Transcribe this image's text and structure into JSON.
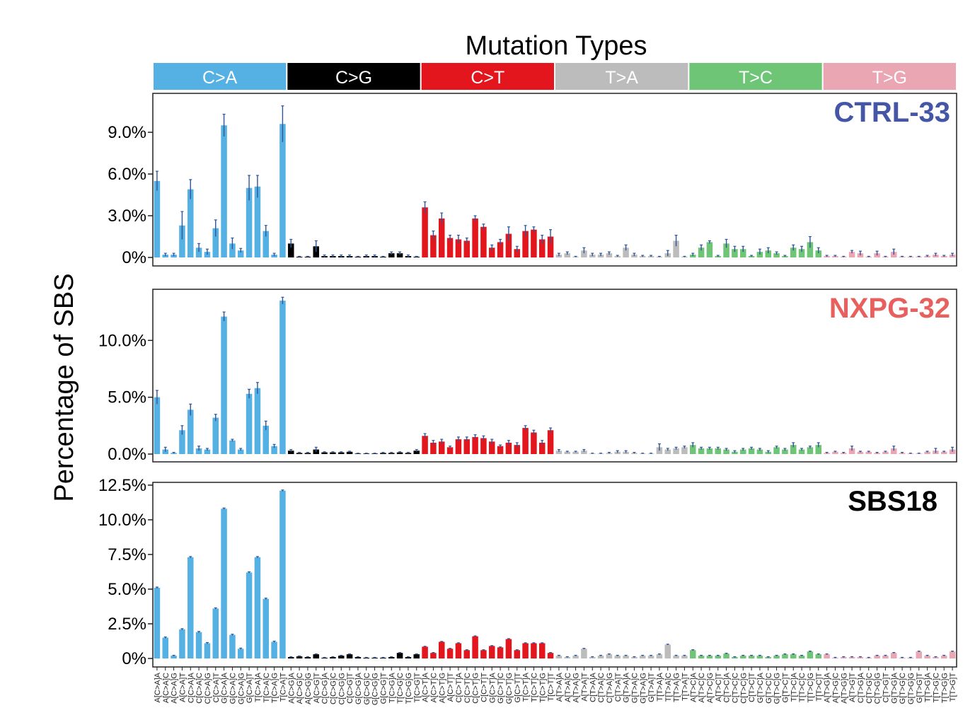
{
  "chart_data": {
    "type": "bar",
    "title": "Mutation Types",
    "ylabel": "Percentage of SBS",
    "groups": [
      {
        "name": "C>A",
        "color": "#55b1e4"
      },
      {
        "name": "C>G",
        "color": "#000000"
      },
      {
        "name": "C>T",
        "color": "#e3161e"
      },
      {
        "name": "T>A",
        "color": "#bcbcbc"
      },
      {
        "name": "T>C",
        "color": "#6ec576"
      },
      {
        "name": "T>G",
        "color": "#eba6b4"
      }
    ],
    "categories": [
      "A[C>A]A",
      "A[C>A]C",
      "A[C>A]G",
      "A[C>A]T",
      "C[C>A]A",
      "C[C>A]C",
      "C[C>A]G",
      "C[C>A]T",
      "G[C>A]A",
      "G[C>A]C",
      "G[C>A]G",
      "G[C>A]T",
      "T[C>A]A",
      "T[C>A]C",
      "T[C>A]G",
      "T[C>A]T",
      "A[C>G]A",
      "A[C>G]C",
      "A[C>G]G",
      "A[C>G]T",
      "C[C>G]A",
      "C[C>G]C",
      "C[C>G]G",
      "C[C>G]T",
      "G[C>G]A",
      "G[C>G]C",
      "G[C>G]G",
      "G[C>G]T",
      "T[C>G]A",
      "T[C>G]C",
      "T[C>G]G",
      "T[C>G]T",
      "A[C>T]A",
      "A[C>T]C",
      "A[C>T]G",
      "A[C>T]T",
      "C[C>T]A",
      "C[C>T]C",
      "C[C>T]G",
      "C[C>T]T",
      "G[C>T]A",
      "G[C>T]C",
      "G[C>T]G",
      "G[C>T]T",
      "T[C>T]A",
      "T[C>T]C",
      "T[C>T]G",
      "T[C>T]T",
      "A[T>A]A",
      "A[T>A]C",
      "A[T>A]G",
      "A[T>A]T",
      "C[T>A]A",
      "C[T>A]C",
      "C[T>A]G",
      "C[T>A]T",
      "G[T>A]A",
      "G[T>A]C",
      "G[T>A]G",
      "G[T>A]T",
      "T[T>A]A",
      "T[T>A]C",
      "T[T>A]G",
      "T[T>A]T",
      "A[T>C]A",
      "A[T>C]C",
      "A[T>C]G",
      "A[T>C]T",
      "C[T>C]A",
      "C[T>C]C",
      "C[T>C]G",
      "C[T>C]T",
      "G[T>C]A",
      "G[T>C]C",
      "G[T>C]G",
      "G[T>C]T",
      "T[T>C]A",
      "T[T>C]C",
      "T[T>C]G",
      "T[T>C]T",
      "A[T>G]A",
      "A[T>G]C",
      "A[T>G]G",
      "A[T>G]T",
      "C[T>G]A",
      "C[T>G]C",
      "C[T>G]G",
      "C[T>G]T",
      "G[T>G]A",
      "G[T>G]C",
      "G[T>G]G",
      "G[T>G]T",
      "T[T>G]A",
      "T[T>G]C",
      "T[T>G]G",
      "T[T>G]T"
    ],
    "panels": [
      {
        "name": "CTRL-33",
        "name_color": "#4456a5",
        "ylim": [
          0,
          11.8
        ],
        "ticks": [
          {
            "v": 0,
            "label": "0%"
          },
          {
            "v": 3,
            "label": "3.0%"
          },
          {
            "v": 6,
            "label": "6.0%"
          },
          {
            "v": 9,
            "label": "9.0%"
          }
        ],
        "values": [
          5.5,
          0.2,
          0.2,
          2.3,
          4.9,
          0.7,
          0.4,
          2.1,
          9.5,
          1.0,
          0.5,
          5.0,
          5.1,
          1.9,
          0.2,
          9.6,
          1.0,
          0.05,
          0.05,
          0.8,
          0.1,
          0.1,
          0.1,
          0.1,
          0.05,
          0.1,
          0.1,
          0.05,
          0.3,
          0.3,
          0.1,
          0.05,
          3.6,
          1.6,
          2.8,
          1.4,
          1.3,
          1.2,
          2.8,
          2.2,
          0.7,
          1.1,
          1.7,
          0.6,
          1.9,
          2.0,
          1.3,
          1.5,
          0.2,
          0.3,
          0.05,
          0.5,
          0.2,
          0.2,
          0.3,
          0.1,
          0.7,
          0.2,
          0.1,
          0.1,
          0.05,
          0.3,
          1.2,
          0.05,
          0.2,
          0.7,
          1.1,
          0.1,
          1.0,
          0.6,
          0.6,
          0.1,
          0.4,
          0.5,
          0.3,
          0.1,
          0.7,
          0.6,
          1.1,
          0.5,
          0.1,
          0.1,
          0.05,
          0.4,
          0.3,
          0.05,
          0.3,
          0.05,
          0.4,
          0.05,
          0.05,
          0.05,
          0.1,
          0.2,
          0.1,
          0.2
        ],
        "errors": [
          0.7,
          0.1,
          0.1,
          1.0,
          0.7,
          0.3,
          0.2,
          0.6,
          0.8,
          0.4,
          0.15,
          0.9,
          0.8,
          0.4,
          0.1,
          1.3,
          0.3,
          0.03,
          0.03,
          0.4,
          0.08,
          0.08,
          0.08,
          0.08,
          0.03,
          0.08,
          0.08,
          0.03,
          0.1,
          0.1,
          0.08,
          0.03,
          0.4,
          0.3,
          0.4,
          0.2,
          0.3,
          0.2,
          0.2,
          0.2,
          0.2,
          0.2,
          0.5,
          0.2,
          0.4,
          0.2,
          0.3,
          0.5,
          0.1,
          0.1,
          0.03,
          0.2,
          0.1,
          0.1,
          0.1,
          0.05,
          0.2,
          0.1,
          0.05,
          0.05,
          0.03,
          0.2,
          0.4,
          0.03,
          0.1,
          0.2,
          0.1,
          0.05,
          0.3,
          0.2,
          0.2,
          0.05,
          0.2,
          0.2,
          0.1,
          0.05,
          0.2,
          0.2,
          0.4,
          0.2,
          0.05,
          0.05,
          0.03,
          0.1,
          0.15,
          0.03,
          0.15,
          0.03,
          0.2,
          0.03,
          0.03,
          0.03,
          0.05,
          0.1,
          0.05,
          0.1
        ]
      },
      {
        "name": "NXPG-32",
        "name_color": "#e8605e",
        "ylim": [
          0,
          14.5
        ],
        "ticks": [
          {
            "v": 0,
            "label": "0.0%"
          },
          {
            "v": 5,
            "label": "5.0%"
          },
          {
            "v": 10,
            "label": "10.0%"
          }
        ],
        "values": [
          5.0,
          0.4,
          0.1,
          2.1,
          3.9,
          0.5,
          0.4,
          3.2,
          12.1,
          1.2,
          0.4,
          5.3,
          5.8,
          2.5,
          0.7,
          13.5,
          0.3,
          0.1,
          0.1,
          0.4,
          0.15,
          0.15,
          0.15,
          0.2,
          0.05,
          0.05,
          0.05,
          0.1,
          0.1,
          0.15,
          0.1,
          0.3,
          1.6,
          1.0,
          1.1,
          0.6,
          1.3,
          1.3,
          1.5,
          1.4,
          1.1,
          0.7,
          1.0,
          0.8,
          2.3,
          1.9,
          1.0,
          2.1,
          0.3,
          0.2,
          0.2,
          0.3,
          0.05,
          0.05,
          0.1,
          0.2,
          0.2,
          0.1,
          0.05,
          0.05,
          0.6,
          0.4,
          0.5,
          0.6,
          0.8,
          0.5,
          0.5,
          0.5,
          0.4,
          0.2,
          0.4,
          0.5,
          0.4,
          0.2,
          0.6,
          0.4,
          0.8,
          0.4,
          0.6,
          0.8,
          0.1,
          0.2,
          0.1,
          0.5,
          0.2,
          0.2,
          0.1,
          0.2,
          0.5,
          0.1,
          0.05,
          0.05,
          0.2,
          0.3,
          0.2,
          0.4
        ],
        "errors": [
          0.6,
          0.2,
          0.05,
          0.4,
          0.5,
          0.2,
          0.1,
          0.3,
          0.4,
          0.1,
          0.1,
          0.4,
          0.5,
          0.4,
          0.15,
          0.3,
          0.1,
          0.05,
          0.05,
          0.2,
          0.05,
          0.05,
          0.05,
          0.05,
          0.03,
          0.03,
          0.03,
          0.05,
          0.05,
          0.05,
          0.05,
          0.1,
          0.2,
          0.2,
          0.2,
          0.1,
          0.2,
          0.2,
          0.2,
          0.2,
          0.2,
          0.1,
          0.2,
          0.2,
          0.2,
          0.2,
          0.2,
          0.2,
          0.1,
          0.05,
          0.05,
          0.1,
          0.03,
          0.03,
          0.05,
          0.1,
          0.1,
          0.05,
          0.03,
          0.03,
          0.3,
          0.1,
          0.1,
          0.1,
          0.2,
          0.1,
          0.1,
          0.1,
          0.1,
          0.1,
          0.1,
          0.1,
          0.1,
          0.1,
          0.1,
          0.1,
          0.2,
          0.1,
          0.1,
          0.2,
          0.05,
          0.05,
          0.05,
          0.2,
          0.05,
          0.05,
          0.05,
          0.05,
          0.2,
          0.05,
          0.03,
          0.03,
          0.05,
          0.2,
          0.05,
          0.2
        ]
      },
      {
        "name": "SBS18",
        "name_color": "#000000",
        "ylim": [
          0,
          12.7
        ],
        "ticks": [
          {
            "v": 0,
            "label": "0%"
          },
          {
            "v": 2.5,
            "label": "2.5%"
          },
          {
            "v": 5,
            "label": "5.0%"
          },
          {
            "v": 7.5,
            "label": "7.5%"
          },
          {
            "v": 10,
            "label": "10.0%"
          },
          {
            "v": 12.5,
            "label": "12.5%"
          }
        ],
        "values": [
          5.1,
          1.5,
          0.2,
          2.1,
          7.3,
          1.9,
          1.1,
          3.6,
          10.8,
          1.7,
          0.7,
          6.2,
          7.3,
          4.3,
          1.2,
          12.1,
          0.1,
          0.15,
          0.1,
          0.3,
          0.05,
          0.1,
          0.2,
          0.3,
          0.1,
          0.05,
          0.05,
          0.05,
          0.1,
          0.4,
          0.1,
          0.3,
          0.85,
          0.4,
          1.2,
          0.7,
          1.1,
          0.6,
          1.6,
          0.6,
          0.9,
          0.8,
          1.4,
          0.6,
          1.1,
          1.1,
          1.1,
          0.4,
          0.2,
          0.1,
          0.2,
          0.7,
          0.1,
          0.2,
          0.3,
          0.2,
          0.2,
          0.1,
          0.2,
          0.2,
          0.3,
          1.0,
          0.2,
          0.2,
          0.6,
          0.2,
          0.2,
          0.2,
          0.35,
          0.1,
          0.2,
          0.2,
          0.2,
          0.1,
          0.2,
          0.3,
          0.3,
          0.2,
          0.5,
          0.3,
          0.3,
          0.05,
          0.1,
          0.1,
          0.1,
          0.05,
          0.2,
          0.2,
          0.4,
          0.05,
          0.05,
          0.5,
          0.2,
          0.1,
          0.2,
          0.5
        ],
        "errors": [
          0.05,
          0.05,
          0.03,
          0.05,
          0.05,
          0.05,
          0.05,
          0.05,
          0.05,
          0.05,
          0.05,
          0.05,
          0.05,
          0.05,
          0.05,
          0.05,
          0.03,
          0.03,
          0.03,
          0.03,
          0.03,
          0.03,
          0.03,
          0.03,
          0.03,
          0.03,
          0.03,
          0.03,
          0.03,
          0.03,
          0.03,
          0.03,
          0.03,
          0.03,
          0.03,
          0.03,
          0.03,
          0.03,
          0.03,
          0.03,
          0.03,
          0.03,
          0.03,
          0.03,
          0.03,
          0.03,
          0.03,
          0.03,
          0.03,
          0.03,
          0.03,
          0.03,
          0.03,
          0.03,
          0.03,
          0.03,
          0.03,
          0.03,
          0.03,
          0.03,
          0.03,
          0.03,
          0.03,
          0.03,
          0.03,
          0.03,
          0.03,
          0.03,
          0.03,
          0.03,
          0.03,
          0.03,
          0.03,
          0.03,
          0.03,
          0.03,
          0.03,
          0.03,
          0.03,
          0.03,
          0.03,
          0.03,
          0.03,
          0.03,
          0.03,
          0.03,
          0.03,
          0.03,
          0.03,
          0.03,
          0.03,
          0.03,
          0.03,
          0.03,
          0.03,
          0.03
        ]
      }
    ]
  }
}
